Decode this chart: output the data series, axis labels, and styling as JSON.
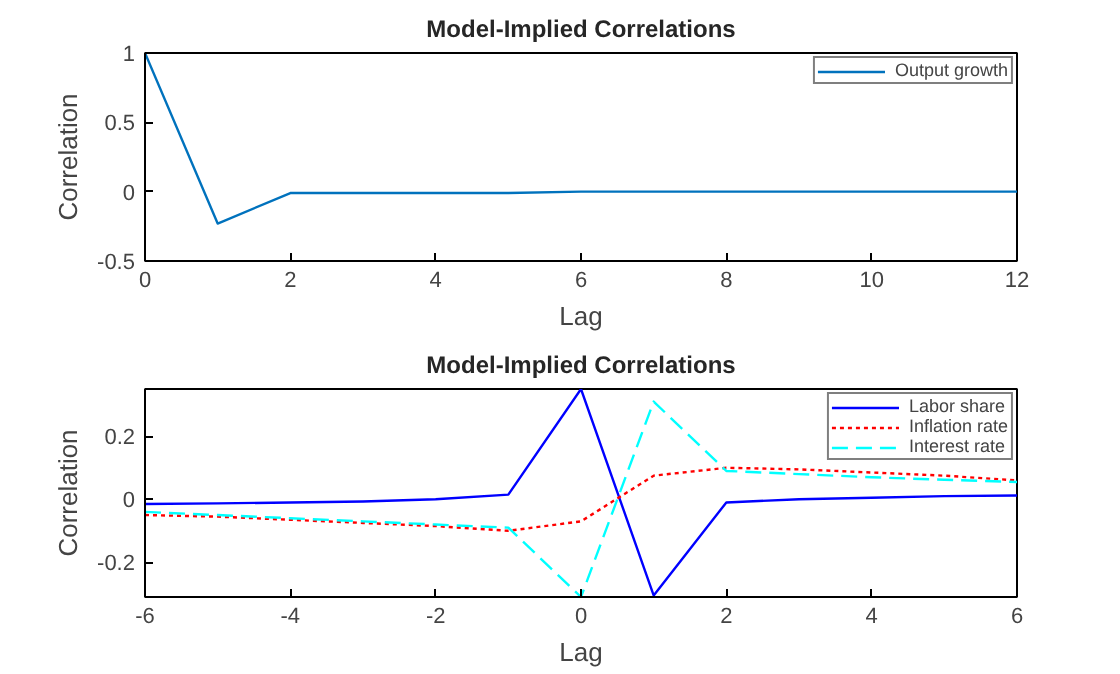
{
  "chart_data": [
    {
      "type": "line",
      "title": "Model-Implied Correlations",
      "xlabel": "Lag",
      "ylabel": "Correlation",
      "x": [
        0,
        1,
        2,
        3,
        4,
        5,
        6,
        7,
        8,
        9,
        10,
        11,
        12
      ],
      "series": [
        {
          "name": "Output growth",
          "color": "#0072bd",
          "line_style": "solid",
          "values": [
            1,
            -0.23,
            -0.01,
            -0.01,
            -0.01,
            -0.01,
            0,
            0,
            0,
            0,
            0,
            0,
            0
          ]
        }
      ],
      "xlim": [
        0,
        12
      ],
      "xticks": [
        0,
        2,
        4,
        6,
        8,
        10,
        12
      ],
      "ylim": [
        -0.5,
        1
      ],
      "yticks": [
        -0.5,
        0,
        0.5,
        1
      ],
      "grid": false,
      "legend": "top right"
    },
    {
      "type": "line",
      "title": "Model-Implied Correlations",
      "xlabel": "Lag",
      "ylabel": "Correlation",
      "x": [
        -6,
        -5,
        -4,
        -3,
        -2,
        -1,
        0,
        1,
        2,
        3,
        4,
        5,
        6
      ],
      "series": [
        {
          "name": "Labor share",
          "color": "#0000ff",
          "line_style": "solid",
          "values": [
            -0.015,
            -0.013,
            -0.01,
            -0.007,
            0,
            0.015,
            0.35,
            -0.305,
            -0.01,
            0,
            0.005,
            0.01,
            0.012
          ]
        },
        {
          "name": "Inflation rate",
          "color": "#ff0000",
          "line_style": "dotted",
          "values": [
            -0.05,
            -0.055,
            -0.065,
            -0.075,
            -0.085,
            -0.1,
            -0.07,
            0.075,
            0.1,
            0.095,
            0.085,
            0.075,
            0.06
          ]
        },
        {
          "name": "Interest rate",
          "color": "#00ffff",
          "line_style": "dashed",
          "values": [
            -0.04,
            -0.05,
            -0.06,
            -0.07,
            -0.08,
            -0.09,
            -0.31,
            0.31,
            0.09,
            0.08,
            0.07,
            0.062,
            0.055
          ]
        }
      ],
      "xlim": [
        -6,
        6
      ],
      "xticks": [
        -6,
        -4,
        -2,
        0,
        2,
        4,
        6
      ],
      "ylim": [
        -0.31,
        0.35
      ],
      "yticks": [
        -0.2,
        0,
        0.2
      ],
      "grid": false,
      "legend": "top right"
    }
  ]
}
